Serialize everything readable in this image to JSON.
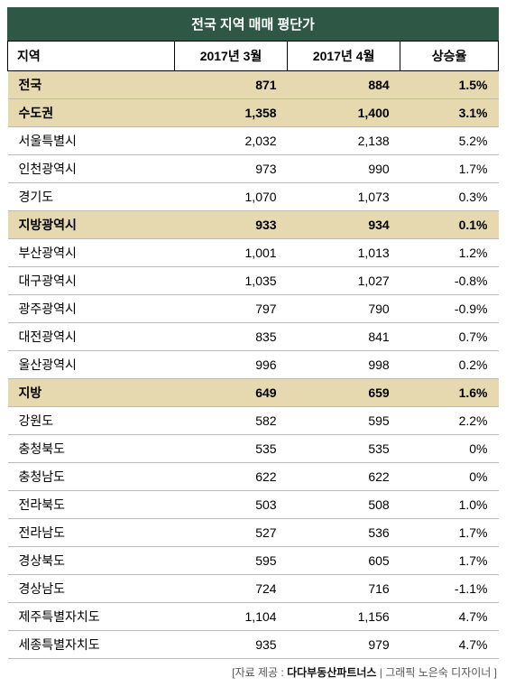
{
  "title": "전국 지역 매매 평단가",
  "columns": [
    "지역",
    "2017년 3월",
    "2017년 4월",
    "상승율"
  ],
  "rows": [
    {
      "group": true,
      "cells": [
        "전국",
        "871",
        "884",
        "1.5%"
      ]
    },
    {
      "group": true,
      "cells": [
        "수도권",
        "1,358",
        "1,400",
        "3.1%"
      ]
    },
    {
      "group": false,
      "cells": [
        "서울특별시",
        "2,032",
        "2,138",
        "5.2%"
      ]
    },
    {
      "group": false,
      "cells": [
        "인천광역시",
        "973",
        "990",
        "1.7%"
      ]
    },
    {
      "group": false,
      "cells": [
        "경기도",
        "1,070",
        "1,073",
        "0.3%"
      ]
    },
    {
      "group": true,
      "cells": [
        "지방광역시",
        "933",
        "934",
        "0.1%"
      ]
    },
    {
      "group": false,
      "cells": [
        "부산광역시",
        "1,001",
        "1,013",
        "1.2%"
      ]
    },
    {
      "group": false,
      "cells": [
        "대구광역시",
        "1,035",
        "1,027",
        "-0.8%"
      ]
    },
    {
      "group": false,
      "cells": [
        "광주광역시",
        "797",
        "790",
        "-0.9%"
      ]
    },
    {
      "group": false,
      "cells": [
        "대전광역시",
        "835",
        "841",
        "0.7%"
      ]
    },
    {
      "group": false,
      "cells": [
        "울산광역시",
        "996",
        "998",
        "0.2%"
      ]
    },
    {
      "group": true,
      "cells": [
        "지방",
        "649",
        "659",
        "1.6%"
      ]
    },
    {
      "group": false,
      "cells": [
        "강원도",
        "582",
        "595",
        "2.2%"
      ]
    },
    {
      "group": false,
      "cells": [
        "충청북도",
        "535",
        "535",
        "0%"
      ]
    },
    {
      "group": false,
      "cells": [
        "충청남도",
        "622",
        "622",
        "0%"
      ]
    },
    {
      "group": false,
      "cells": [
        "전라북도",
        "503",
        "508",
        "1.0%"
      ]
    },
    {
      "group": false,
      "cells": [
        "전라남도",
        "527",
        "536",
        "1.7%"
      ]
    },
    {
      "group": false,
      "cells": [
        "경상북도",
        "595",
        "605",
        "1.7%"
      ]
    },
    {
      "group": false,
      "cells": [
        "경상남도",
        "724",
        "716",
        "-1.1%"
      ]
    },
    {
      "group": false,
      "cells": [
        "제주특별자치도",
        "1,104",
        "1,156",
        "4.7%"
      ]
    },
    {
      "group": false,
      "cells": [
        "세종특별자치도",
        "935",
        "979",
        "4.7%"
      ]
    }
  ],
  "colwidths": [
    "34%",
    "23%",
    "23%",
    "20%"
  ],
  "credit_prefix": "[자료 제공 : ",
  "credit_source": "다다부동산파트너스",
  "credit_sep": " | 그래픽 노은숙 디자이너 ]"
}
